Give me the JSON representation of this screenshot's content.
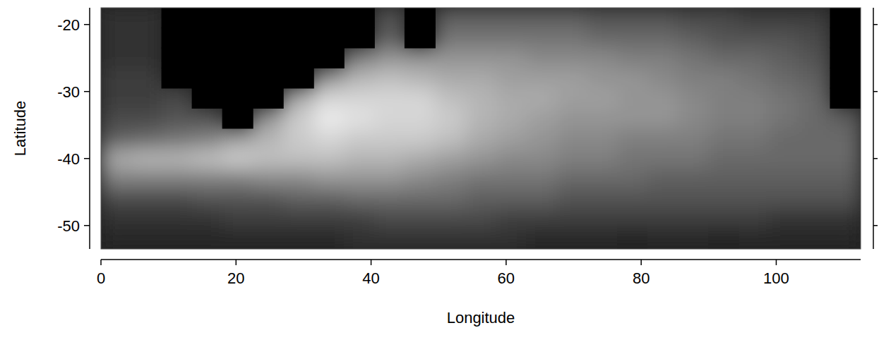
{
  "chart_data": {
    "type": "heatmap",
    "x_label": "Longitude",
    "y_label": "Latitude",
    "xlim": [
      0,
      112.5
    ],
    "ylim": [
      -53.5,
      -17.5
    ],
    "xticks": [
      0,
      20,
      40,
      60,
      80,
      100
    ],
    "yticks": [
      -20,
      -30,
      -40,
      -50
    ],
    "zlim": [
      0,
      10
    ],
    "x_edges": [
      0,
      4.5,
      9,
      13.5,
      18,
      22.5,
      27,
      31.5,
      36,
      40.5,
      45,
      49.5,
      54,
      58.5,
      63,
      67.5,
      72,
      76.5,
      81,
      85.5,
      90,
      94.5,
      99,
      103.5,
      108,
      112.5
    ],
    "y_edges": [
      -53.5,
      -50.5,
      -47.5,
      -44.5,
      -41.5,
      -38.5,
      -35.5,
      -32.5,
      -29.5,
      -26.5,
      -23.5,
      -20.5,
      -17.5
    ],
    "cells": [
      [
        1,
        1,
        1,
        1,
        1,
        1,
        1,
        1,
        1.5,
        1.5,
        1.5,
        1.5,
        1.5,
        1.5,
        1,
        1,
        1,
        0.8,
        1,
        1,
        0.8,
        1,
        1,
        1,
        1
      ],
      [
        1.5,
        1.5,
        1.5,
        1.5,
        2,
        2,
        2,
        2,
        2,
        2.5,
        2.5,
        2.5,
        2.5,
        2,
        2,
        2,
        2,
        2,
        2,
        2,
        2,
        2,
        1.5,
        1.5,
        1.5
      ],
      [
        2.5,
        2.5,
        2.5,
        3,
        3,
        3,
        3.5,
        3.5,
        4,
        4,
        4,
        4,
        3.5,
        3.5,
        3.5,
        3,
        3,
        3,
        3,
        3,
        3,
        3,
        3,
        3,
        3
      ],
      [
        5,
        5,
        5,
        5,
        5,
        5.5,
        5.5,
        6,
        6,
        6,
        5.5,
        5,
        4.5,
        4.5,
        4.5,
        4,
        4,
        4,
        3.5,
        3.5,
        3.5,
        3.5,
        3.5,
        3.5,
        3.5
      ],
      [
        7,
        7.5,
        7.5,
        8,
        8.5,
        8,
        8,
        8,
        7.5,
        7.5,
        7,
        6.5,
        6,
        5.5,
        5.5,
        5,
        5,
        4.5,
        4.5,
        4.5,
        4,
        4,
        4,
        4,
        4
      ],
      [
        3.5,
        4,
        4.5,
        5,
        6.5,
        7.5,
        8.5,
        9,
        8.5,
        8.5,
        8.5,
        8,
        7,
        6.5,
        6,
        5.5,
        5.5,
        5,
        5,
        5,
        4.5,
        4.5,
        4,
        4,
        4
      ],
      [
        2.5,
        2.5,
        3,
        3,
        null,
        6,
        8.5,
        10,
        9.5,
        9,
        9,
        8.5,
        7.5,
        7,
        6.5,
        6,
        6,
        6,
        6,
        5.5,
        5,
        5,
        4.5,
        4,
        3.5
      ],
      [
        2,
        2,
        2.5,
        null,
        null,
        null,
        7,
        9,
        9,
        9,
        9,
        8,
        7.5,
        7,
        7,
        6.5,
        6.5,
        6,
        6,
        5.5,
        5,
        5,
        4.5,
        4,
        null
      ],
      [
        2,
        2,
        null,
        null,
        null,
        null,
        null,
        6,
        7.5,
        8,
        7.5,
        7,
        7,
        6.5,
        6.5,
        6.5,
        6,
        6,
        5.5,
        5,
        5,
        4.5,
        4,
        3.5,
        null
      ],
      [
        1.5,
        1.5,
        null,
        null,
        null,
        null,
        null,
        null,
        5,
        6,
        6,
        6,
        6,
        6,
        5.5,
        5.5,
        5.5,
        5,
        5,
        4.5,
        4,
        4,
        3.5,
        3,
        null
      ],
      [
        1.5,
        1.5,
        null,
        null,
        null,
        null,
        null,
        null,
        null,
        3.5,
        null,
        4.5,
        4.5,
        4.5,
        4.5,
        4.5,
        4,
        4,
        4,
        3.5,
        3,
        3,
        3,
        2.5,
        null
      ],
      [
        1.5,
        1.5,
        null,
        null,
        null,
        null,
        null,
        null,
        null,
        3,
        null,
        3.5,
        3.5,
        3.5,
        3.5,
        3.5,
        3,
        3,
        3,
        2.5,
        2.5,
        2,
        2,
        2,
        null
      ]
    ]
  }
}
